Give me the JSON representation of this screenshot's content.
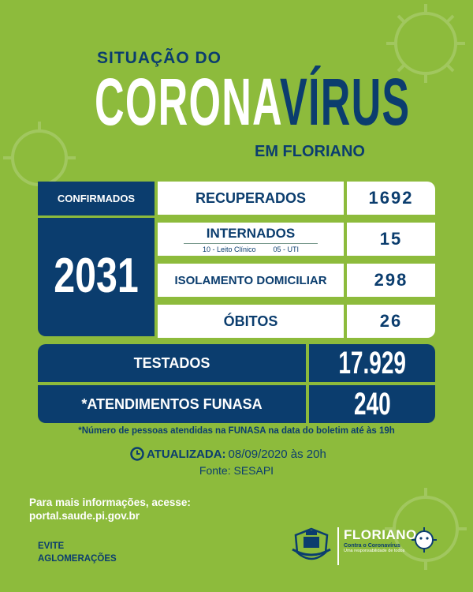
{
  "header": {
    "line1": "SITUAÇÃO DO",
    "corona": "CORONA",
    "virus": "VÍRUS",
    "line3": "EM FLORIANO"
  },
  "stats": {
    "confirmed_label": "CONFIRMADOS",
    "confirmed_value": "2031",
    "recovered_label": "RECUPERADOS",
    "recovered_value": "1692",
    "hospitalized_label": "INTERNADOS",
    "hospitalized_clinical": "10 - Leito Clínico",
    "hospitalized_icu": "05 - UTI",
    "hospitalized_value": "15",
    "isolation_label": "ISOLAMENTO DOMICILIAR",
    "isolation_value": "298",
    "deaths_label": "ÓBITOS",
    "deaths_value": "26",
    "tested_label": "TESTADOS",
    "tested_value": "17.929",
    "funasa_label": "*ATENDIMENTOS FUNASA",
    "funasa_value": "240"
  },
  "footer": {
    "note": "*Número de pessoas atendidas na FUNASA na data do boletim até às 19h",
    "updated_label": "ATUALIZADA:",
    "updated_value": "08/09/2020 às 20h",
    "source": "Fonte: SESAPI",
    "info_line1": "Para mais informações, acesse:",
    "info_line2": "portal.saude.pi.gov.br",
    "evite_line1": "EVITE",
    "evite_line2": "AGLOMERAÇÕES",
    "brand_name": "FLORIANO",
    "brand_sub": "Contra o Coronavírus",
    "brand_tag": "Uma responsabilidade de todos"
  },
  "colors": {
    "background": "#8dbb3c",
    "navy": "#0b3d6e",
    "white": "#ffffff"
  }
}
